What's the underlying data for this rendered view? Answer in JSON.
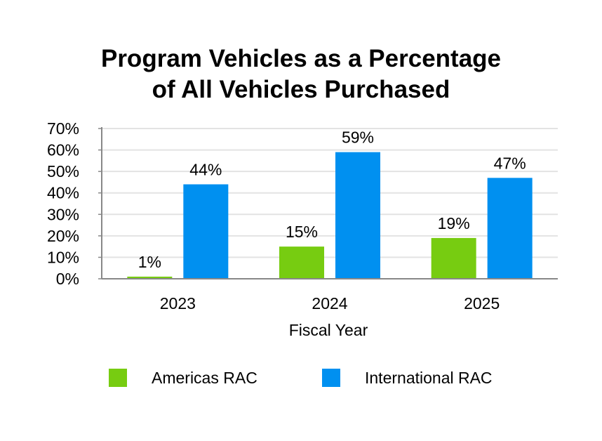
{
  "chart_data": {
    "type": "bar",
    "title_line1": "Program Vehicles as a Percentage",
    "title_line2": "of All Vehicles Purchased",
    "xlabel": "Fiscal Year",
    "ylabel": "",
    "ylim": [
      0,
      70
    ],
    "yticks": [
      0,
      10,
      20,
      30,
      40,
      50,
      60,
      70
    ],
    "ytick_labels": [
      "0%",
      "10%",
      "20%",
      "30%",
      "40%",
      "50%",
      "60%",
      "70%"
    ],
    "categories": [
      "2023",
      "2024",
      "2025"
    ],
    "series": [
      {
        "name": "Americas RAC",
        "color": "#77cc11",
        "values": [
          1,
          15,
          19
        ],
        "labels": [
          "1%",
          "15%",
          "19%"
        ]
      },
      {
        "name": "International RAC",
        "color": "#0090f0",
        "values": [
          44,
          59,
          47
        ],
        "labels": [
          "44%",
          "59%",
          "47%"
        ]
      }
    ],
    "grid": true,
    "legend": "bottom"
  }
}
